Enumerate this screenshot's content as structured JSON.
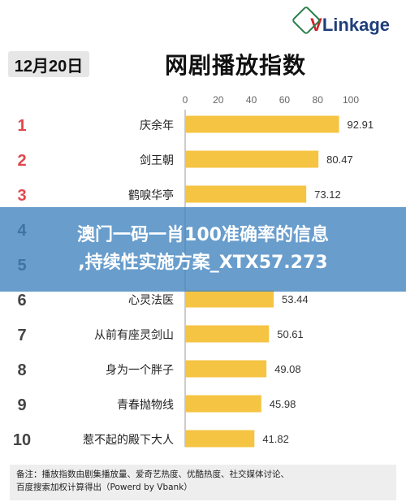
{
  "logo": {
    "v": "V",
    "rest": "Linkage"
  },
  "date_label": "12月20日",
  "chart_data": {
    "type": "bar",
    "orientation": "horizontal",
    "title": "网剧播放指数",
    "categories": [
      "庆余年",
      "剑王朝",
      "鹤唳华亭",
      "",
      "",
      "心灵法医",
      "从前有座灵剑山",
      "身为一个胖子",
      "青春抛物线",
      "惹不起的殿下大人"
    ],
    "ranks": [
      "1",
      "2",
      "3",
      "4",
      "5",
      "6",
      "7",
      "8",
      "9",
      "10"
    ],
    "values": [
      92.91,
      80.47,
      73.12,
      null,
      null,
      53.44,
      50.61,
      49.08,
      45.98,
      41.82
    ],
    "value_labels": [
      "92.91",
      "80.47",
      "73.12",
      "",
      "",
      "53.44",
      "50.61",
      "49.08",
      "45.98",
      "41.82"
    ],
    "xlim": [
      0,
      100
    ],
    "ticks": [
      "0",
      "20",
      "40",
      "60",
      "80",
      "100"
    ],
    "bar_color": "#f6c443",
    "top_rank_color": "#e0474c",
    "other_rank_color": "#444444",
    "grid": false
  },
  "overlay": {
    "line1": "澳门一码一肖100准确率的信息",
    "line2": ",持续性实施方案_XTX57.273"
  },
  "footnote": {
    "line1": "备注：播放指数由剧集播放量、爱奇艺热度、优酷热度、社交媒体讨论、",
    "line2": "百度搜索加权计算得出（Powerd by Vbank）"
  }
}
